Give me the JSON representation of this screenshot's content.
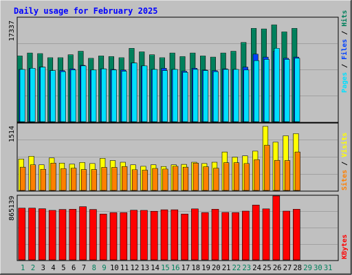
{
  "title": "Daily usage for February 2025",
  "colors": {
    "background": "#c0c0c0",
    "title": "#0000ff",
    "hits": "#00805c",
    "files": "#0040ff",
    "pages": "#00e0ff",
    "visits": "#ffff00",
    "sites": "#ff8000",
    "kbytes": "#ff0000",
    "weekend_label": "#00805c",
    "weekday_label": "#000000",
    "empty_day_label": "#00805c"
  },
  "chart_data": [
    {
      "type": "bar",
      "panel": "hits-files-pages",
      "categories": [
        "1",
        "2",
        "3",
        "4",
        "5",
        "6",
        "7",
        "8",
        "9",
        "10",
        "11",
        "12",
        "13",
        "14",
        "15",
        "16",
        "17",
        "18",
        "19",
        "20",
        "21",
        "22",
        "23",
        "24",
        "25",
        "26",
        "27",
        "28"
      ],
      "y_max_label": "17337",
      "ylim": [
        0,
        17337
      ],
      "right_labels": [
        "Pages",
        "Files",
        "Hits"
      ],
      "series": [
        {
          "name": "Hits",
          "values": [
            11200,
            11700,
            11600,
            10900,
            10900,
            11400,
            12000,
            10800,
            11200,
            11100,
            10900,
            12500,
            11900,
            11400,
            10900,
            11700,
            11100,
            11700,
            11200,
            11000,
            11700,
            12000,
            13500,
            15900,
            15800,
            16500,
            15300,
            15900
          ]
        },
        {
          "name": "Files",
          "values": [
            8900,
            9100,
            9300,
            8700,
            8700,
            9000,
            9600,
            8800,
            9000,
            8900,
            8800,
            10000,
            9500,
            8900,
            9100,
            8900,
            8600,
            9100,
            8800,
            8700,
            9000,
            8900,
            9300,
            11500,
            11000,
            12000,
            10800,
            11000
          ]
        },
        {
          "name": "Pages",
          "values": [
            8900,
            9100,
            9300,
            8700,
            8500,
            8800,
            9500,
            8800,
            9000,
            8800,
            8600,
            10000,
            9500,
            8900,
            8700,
            8900,
            8400,
            8900,
            8700,
            8500,
            8900,
            8900,
            8800,
            10400,
            10600,
            12500,
            10600,
            10800
          ]
        }
      ]
    },
    {
      "type": "bar",
      "panel": "visits-sites",
      "categories": [
        "1",
        "2",
        "3",
        "4",
        "5",
        "6",
        "7",
        "8",
        "9",
        "10",
        "11",
        "12",
        "13",
        "14",
        "15",
        "16",
        "17",
        "18",
        "19",
        "20",
        "21",
        "22",
        "23",
        "24",
        "25",
        "26",
        "27",
        "28"
      ],
      "y_max_label": "1514",
      "ylim": [
        0,
        1514
      ],
      "right_labels": [
        "Sites",
        "Visits"
      ],
      "series": [
        {
          "name": "Visits",
          "values": [
            735,
            800,
            600,
            760,
            640,
            615,
            655,
            630,
            750,
            700,
            660,
            600,
            565,
            600,
            560,
            600,
            610,
            660,
            630,
            660,
            900,
            780,
            810,
            920,
            1500,
            1130,
            1280,
            1330
          ]
        },
        {
          "name": "Sites",
          "values": [
            545,
            600,
            495,
            640,
            510,
            520,
            490,
            490,
            540,
            540,
            560,
            485,
            475,
            515,
            500,
            565,
            545,
            640,
            555,
            520,
            650,
            650,
            630,
            720,
            1060,
            705,
            700,
            900
          ]
        }
      ]
    },
    {
      "type": "bar",
      "panel": "kbytes",
      "categories": [
        "1",
        "2",
        "3",
        "4",
        "5",
        "6",
        "7",
        "8",
        "9",
        "10",
        "11",
        "12",
        "13",
        "14",
        "15",
        "16",
        "17",
        "18",
        "19",
        "20",
        "21",
        "22",
        "23",
        "24",
        "25",
        "26",
        "27",
        "28"
      ],
      "y_max_label": "865139",
      "ylim": [
        0,
        865139
      ],
      "right_labels": [
        "KBytes"
      ],
      "series": [
        {
          "name": "KBytes",
          "values": [
            700000,
            700000,
            692000,
            670000,
            682000,
            685000,
            720000,
            682000,
            620000,
            640000,
            640000,
            672000,
            670000,
            658000,
            678000,
            678000,
            620000,
            690000,
            640000,
            685000,
            642000,
            640000,
            660000,
            742000,
            690000,
            865139,
            660000,
            685000
          ]
        }
      ]
    }
  ],
  "x_axis": {
    "labels": [
      "1",
      "2",
      "3",
      "4",
      "5",
      "6",
      "7",
      "8",
      "9",
      "10",
      "11",
      "12",
      "13",
      "14",
      "15",
      "16",
      "17",
      "18",
      "19",
      "20",
      "21",
      "22",
      "23",
      "24",
      "25",
      "26",
      "27",
      "28",
      "29",
      "30",
      "31"
    ],
    "highlighted": [
      "1",
      "2",
      "8",
      "9",
      "15",
      "16",
      "22",
      "23",
      "29",
      "30"
    ]
  }
}
